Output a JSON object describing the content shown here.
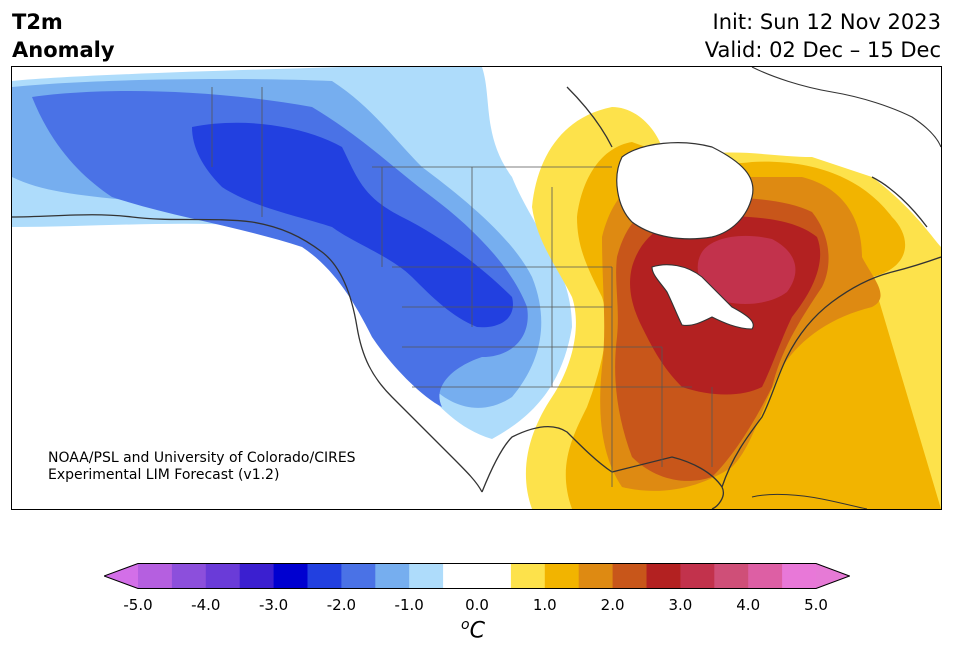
{
  "header": {
    "title_line1": "T2m",
    "title_line2": "Anomaly",
    "init_text": "Init: Sun 12 Nov 2023",
    "valid_text": "Valid: 02 Dec – 15 Dec"
  },
  "credit": {
    "line1": "NOAA/PSL and University of Colorado/CIRES",
    "line2": "Experimental LIM Forecast (v1.2)"
  },
  "colorbar": {
    "tick_labels": [
      "-5.0",
      "-4.0",
      "-3.0",
      "-2.0",
      "-1.0",
      "0.0",
      "1.0",
      "2.0",
      "3.0",
      "4.0",
      "5.0"
    ],
    "unit_base": "C",
    "unit_sup": "o",
    "under_color": "#d36fe8",
    "over_color": "#e67ad6",
    "bins": [
      {
        "min": -5.0,
        "max": -4.5,
        "color": "#b55fe0"
      },
      {
        "min": -4.5,
        "max": -4.0,
        "color": "#8c4fdc"
      },
      {
        "min": -4.0,
        "max": -3.5,
        "color": "#6a3bd8"
      },
      {
        "min": -3.5,
        "max": -3.0,
        "color": "#3b1fd0"
      },
      {
        "min": -3.0,
        "max": -2.5,
        "color": "#0000d0"
      },
      {
        "min": -2.5,
        "max": -2.0,
        "color": "#2240e0"
      },
      {
        "min": -2.0,
        "max": -1.5,
        "color": "#4a72e6"
      },
      {
        "min": -1.5,
        "max": -1.0,
        "color": "#76aeef"
      },
      {
        "min": -1.0,
        "max": -0.5,
        "color": "#aedcfb"
      },
      {
        "min": -0.5,
        "max": 0.5,
        "color": "#ffffff"
      },
      {
        "min": 0.5,
        "max": 1.0,
        "color": "#fde24b"
      },
      {
        "min": 1.0,
        "max": 1.5,
        "color": "#f2b400"
      },
      {
        "min": 1.5,
        "max": 2.0,
        "color": "#de8a12"
      },
      {
        "min": 2.0,
        "max": 2.5,
        "color": "#c8561a"
      },
      {
        "min": 2.5,
        "max": 3.0,
        "color": "#b32121"
      },
      {
        "min": 3.0,
        "max": 3.5,
        "color": "#c2324c"
      },
      {
        "min": 3.5,
        "max": 4.0,
        "color": "#cf4f78"
      },
      {
        "min": 4.0,
        "max": 4.5,
        "color": "#dd5fa4"
      },
      {
        "min": 4.5,
        "max": 5.0,
        "color": "#e878d8"
      }
    ]
  },
  "map": {
    "region": "North America",
    "field": "2 m temperature anomaly",
    "colors": {
      "ocean": "#ffffff",
      "coast": "#333333",
      "border": "#555555"
    }
  }
}
